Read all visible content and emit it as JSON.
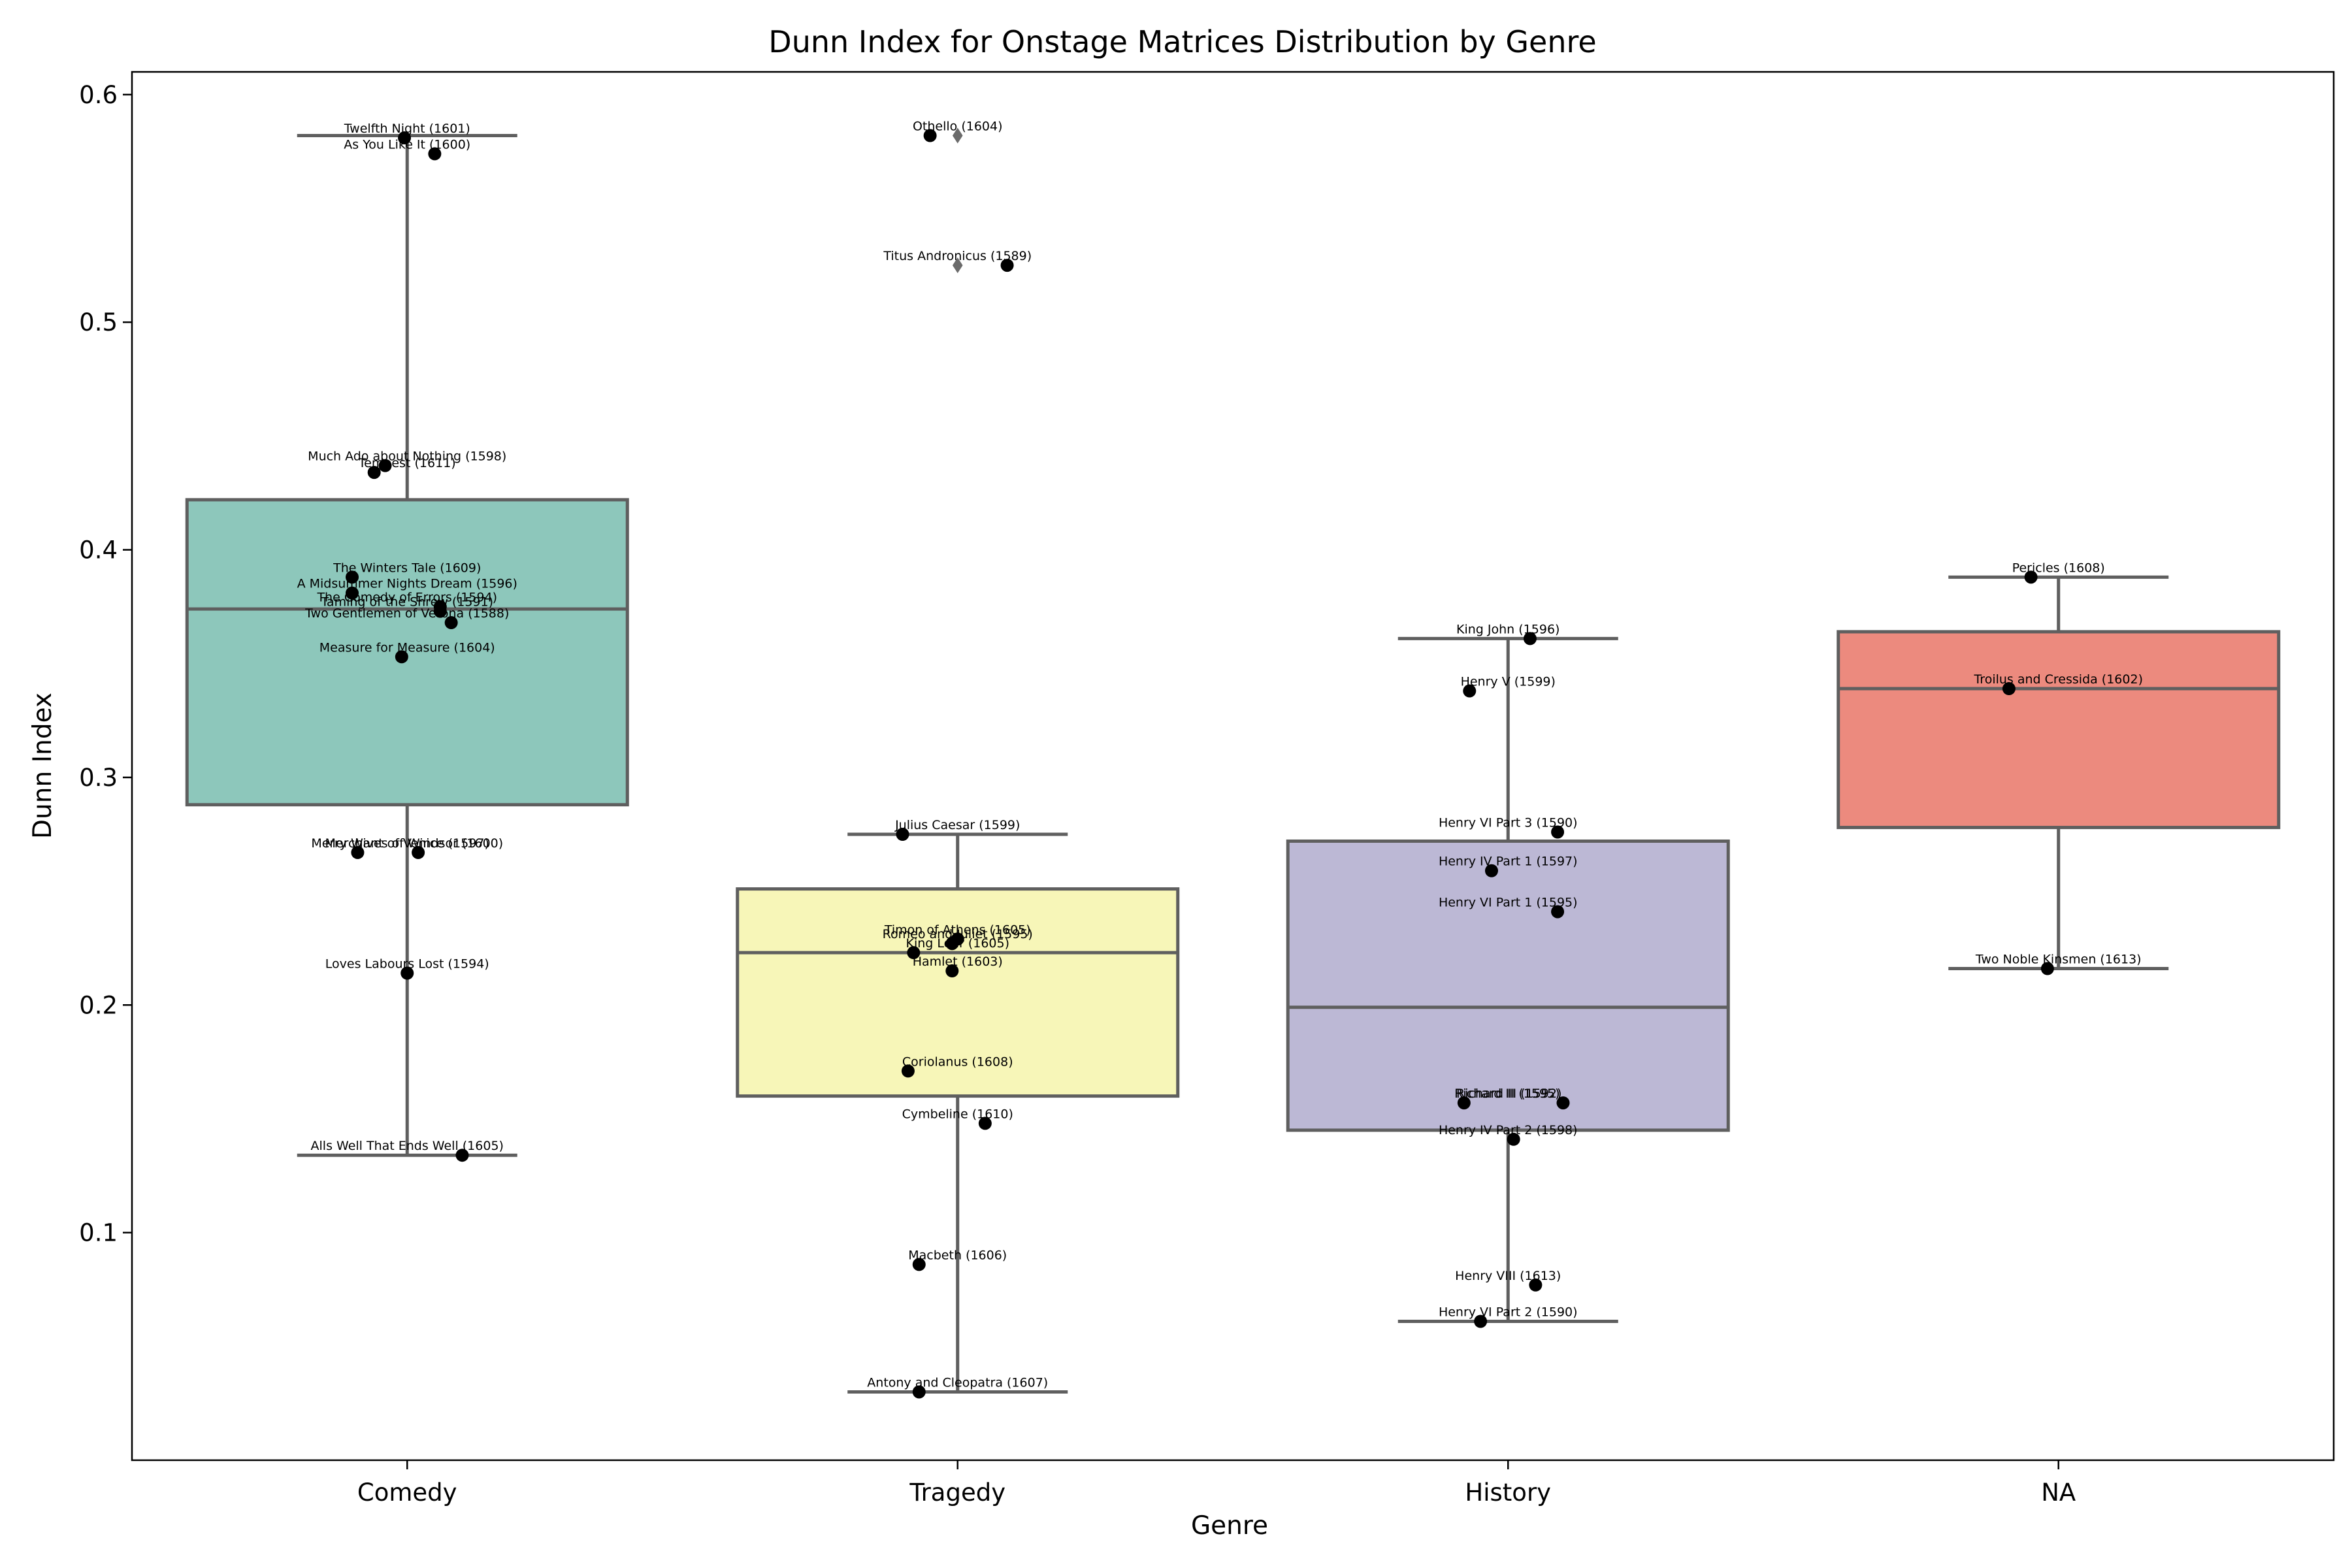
{
  "chart_data": {
    "type": "box",
    "title": "Dunn Index for Onstage Matrices Distribution by Genre",
    "xlabel": "Genre",
    "ylabel": "Dunn Index",
    "ylim": [
      0.0,
      0.61
    ],
    "yticks": [
      0.1,
      0.2,
      0.3,
      0.4,
      0.5,
      0.6
    ],
    "grid": false,
    "categories": [
      "Comedy",
      "Tragedy",
      "History",
      "NA"
    ],
    "boxes": [
      {
        "category": "Comedy",
        "color": "#8dc7bb",
        "whislo": 0.134,
        "q1": 0.288,
        "med": 0.374,
        "q3": 0.422,
        "whishi": 0.582,
        "fliers": []
      },
      {
        "category": "Tragedy",
        "color": "#f7f6b8",
        "whislo": 0.03,
        "q1": 0.16,
        "med": 0.223,
        "q3": 0.251,
        "whishi": 0.275,
        "fliers": [
          0.582,
          0.525
        ]
      },
      {
        "category": "History",
        "color": "#bcb8d5",
        "whislo": 0.061,
        "q1": 0.145,
        "med": 0.199,
        "q3": 0.272,
        "whishi": 0.361,
        "fliers": []
      },
      {
        "category": "NA",
        "color": "#ec8a7e",
        "whislo": 0.216,
        "q1": 0.278,
        "med": 0.339,
        "q3": 0.364,
        "whishi": 0.388,
        "fliers": []
      }
    ],
    "points": [
      {
        "category": "Comedy",
        "label": "Twelfth Night (1601)",
        "value": 0.581,
        "jitter": -0.005
      },
      {
        "category": "Comedy",
        "label": "As You Like It (1600)",
        "value": 0.574,
        "jitter": 0.05
      },
      {
        "category": "Comedy",
        "label": "Much Ado about Nothing (1598)",
        "value": 0.437,
        "jitter": -0.04
      },
      {
        "category": "Comedy",
        "label": "Tempest (1611)",
        "value": 0.434,
        "jitter": -0.06
      },
      {
        "category": "Comedy",
        "label": "The Winters Tale (1609)",
        "value": 0.388,
        "jitter": -0.1
      },
      {
        "category": "Comedy",
        "label": "A Midsummer Nights Dream (1596)",
        "value": 0.381,
        "jitter": -0.1
      },
      {
        "category": "Comedy",
        "label": "The Comedy of Errors (1594)",
        "value": 0.375,
        "jitter": 0.06
      },
      {
        "category": "Comedy",
        "label": "Taming of the Shrew (1591)",
        "value": 0.373,
        "jitter": 0.06
      },
      {
        "category": "Comedy",
        "label": "Two Gentlemen of Verona (1588)",
        "value": 0.368,
        "jitter": 0.08
      },
      {
        "category": "Comedy",
        "label": "Measure for Measure (1604)",
        "value": 0.353,
        "jitter": -0.01
      },
      {
        "category": "Comedy",
        "label": "Merry Wives of Windsor (1600)",
        "value": 0.267,
        "jitter": -0.09
      },
      {
        "category": "Comedy",
        "label": "Merchant of Venice (1597)",
        "value": 0.267,
        "jitter": 0.02
      },
      {
        "category": "Comedy",
        "label": "Loves Labours Lost (1594)",
        "value": 0.214,
        "jitter": 0.0
      },
      {
        "category": "Comedy",
        "label": "Alls Well That Ends Well (1605)",
        "value": 0.134,
        "jitter": 0.1
      },
      {
        "category": "Tragedy",
        "label": "Othello (1604)",
        "value": 0.582,
        "jitter": -0.05
      },
      {
        "category": "Tragedy",
        "label": "Titus Andronicus (1589)",
        "value": 0.525,
        "jitter": 0.09
      },
      {
        "category": "Tragedy",
        "label": "Julius Caesar (1599)",
        "value": 0.275,
        "jitter": -0.1
      },
      {
        "category": "Tragedy",
        "label": "Timon of Athens (1605)",
        "value": 0.229,
        "jitter": 0.0
      },
      {
        "category": "Tragedy",
        "label": "Romeo and Juliet (1595)",
        "value": 0.227,
        "jitter": -0.01
      },
      {
        "category": "Tragedy",
        "label": "King Lear (1605)",
        "value": 0.223,
        "jitter": -0.08
      },
      {
        "category": "Tragedy",
        "label": "Hamlet (1603)",
        "value": 0.215,
        "jitter": -0.01
      },
      {
        "category": "Tragedy",
        "label": "Coriolanus (1608)",
        "value": 0.171,
        "jitter": -0.09
      },
      {
        "category": "Tragedy",
        "label": "Cymbeline (1610)",
        "value": 0.148,
        "jitter": 0.05
      },
      {
        "category": "Tragedy",
        "label": "Macbeth (1606)",
        "value": 0.086,
        "jitter": -0.07
      },
      {
        "category": "Tragedy",
        "label": "Antony and Cleopatra (1607)",
        "value": 0.03,
        "jitter": -0.07
      },
      {
        "category": "History",
        "label": "King John (1596)",
        "value": 0.361,
        "jitter": 0.04
      },
      {
        "category": "History",
        "label": "Henry V (1599)",
        "value": 0.338,
        "jitter": -0.07
      },
      {
        "category": "History",
        "label": "Henry VI Part 3 (1590)",
        "value": 0.276,
        "jitter": 0.09
      },
      {
        "category": "History",
        "label": "Henry IV Part 1 (1597)",
        "value": 0.259,
        "jitter": -0.03
      },
      {
        "category": "History",
        "label": "Henry VI Part 1 (1595)",
        "value": 0.241,
        "jitter": 0.09
      },
      {
        "category": "History",
        "label": "Richard II (1595)",
        "value": 0.157,
        "jitter": -0.08
      },
      {
        "category": "History",
        "label": "Richard III (1592)",
        "value": 0.157,
        "jitter": 0.1
      },
      {
        "category": "History",
        "label": "Henry IV Part 2 (1598)",
        "value": 0.141,
        "jitter": 0.01
      },
      {
        "category": "History",
        "label": "Henry VIII (1613)",
        "value": 0.077,
        "jitter": 0.05
      },
      {
        "category": "History",
        "label": "Henry VI Part 2 (1590)",
        "value": 0.061,
        "jitter": -0.05
      },
      {
        "category": "NA",
        "label": "Pericles (1608)",
        "value": 0.388,
        "jitter": -0.05
      },
      {
        "category": "NA",
        "label": "Troilus and Cressida (1602)",
        "value": 0.339,
        "jitter": -0.09
      },
      {
        "category": "NA",
        "label": "Two Noble Kinsmen (1613)",
        "value": 0.216,
        "jitter": -0.02
      }
    ]
  }
}
